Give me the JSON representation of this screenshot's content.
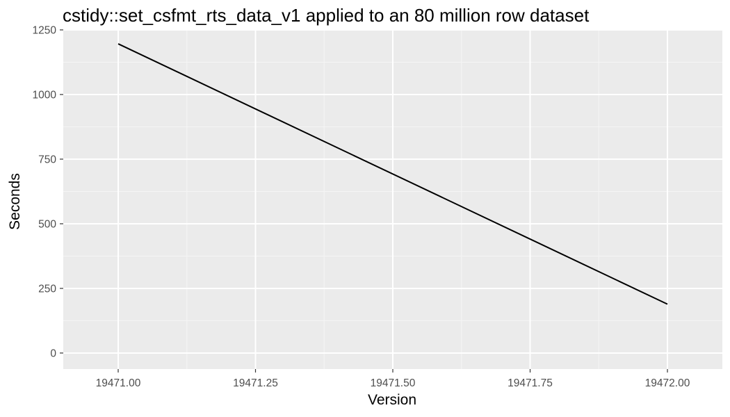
{
  "chart_data": {
    "type": "line",
    "title": "cstidy::set_csfmt_rts_data_v1 applied to an 80 million row dataset",
    "xlabel": "Version",
    "ylabel": "Seconds",
    "x": [
      19471.0,
      19472.0
    ],
    "series": [
      {
        "values": [
          1196,
          189
        ]
      }
    ],
    "xlim": [
      19470.9,
      19472.1
    ],
    "ylim": [
      -62,
      1250
    ],
    "x_ticks": [
      19471.0,
      19471.25,
      19471.5,
      19471.75,
      19472.0
    ],
    "x_tick_labels": [
      "19471.00",
      "19471.25",
      "19471.50",
      "19471.75",
      "19472.00"
    ],
    "y_ticks": [
      0,
      250,
      500,
      750,
      1000,
      1250
    ],
    "y_tick_labels": [
      "0",
      "250",
      "500",
      "750",
      "1000",
      "1250"
    ],
    "grid": true,
    "legend": "none",
    "colors": {
      "panel_background": "#ebebeb",
      "grid_major": "#ffffff",
      "grid_minor": "#f5f5f5",
      "line": "#000000",
      "tick_text": "#4d4d4d",
      "tick_mark": "#333333"
    }
  }
}
